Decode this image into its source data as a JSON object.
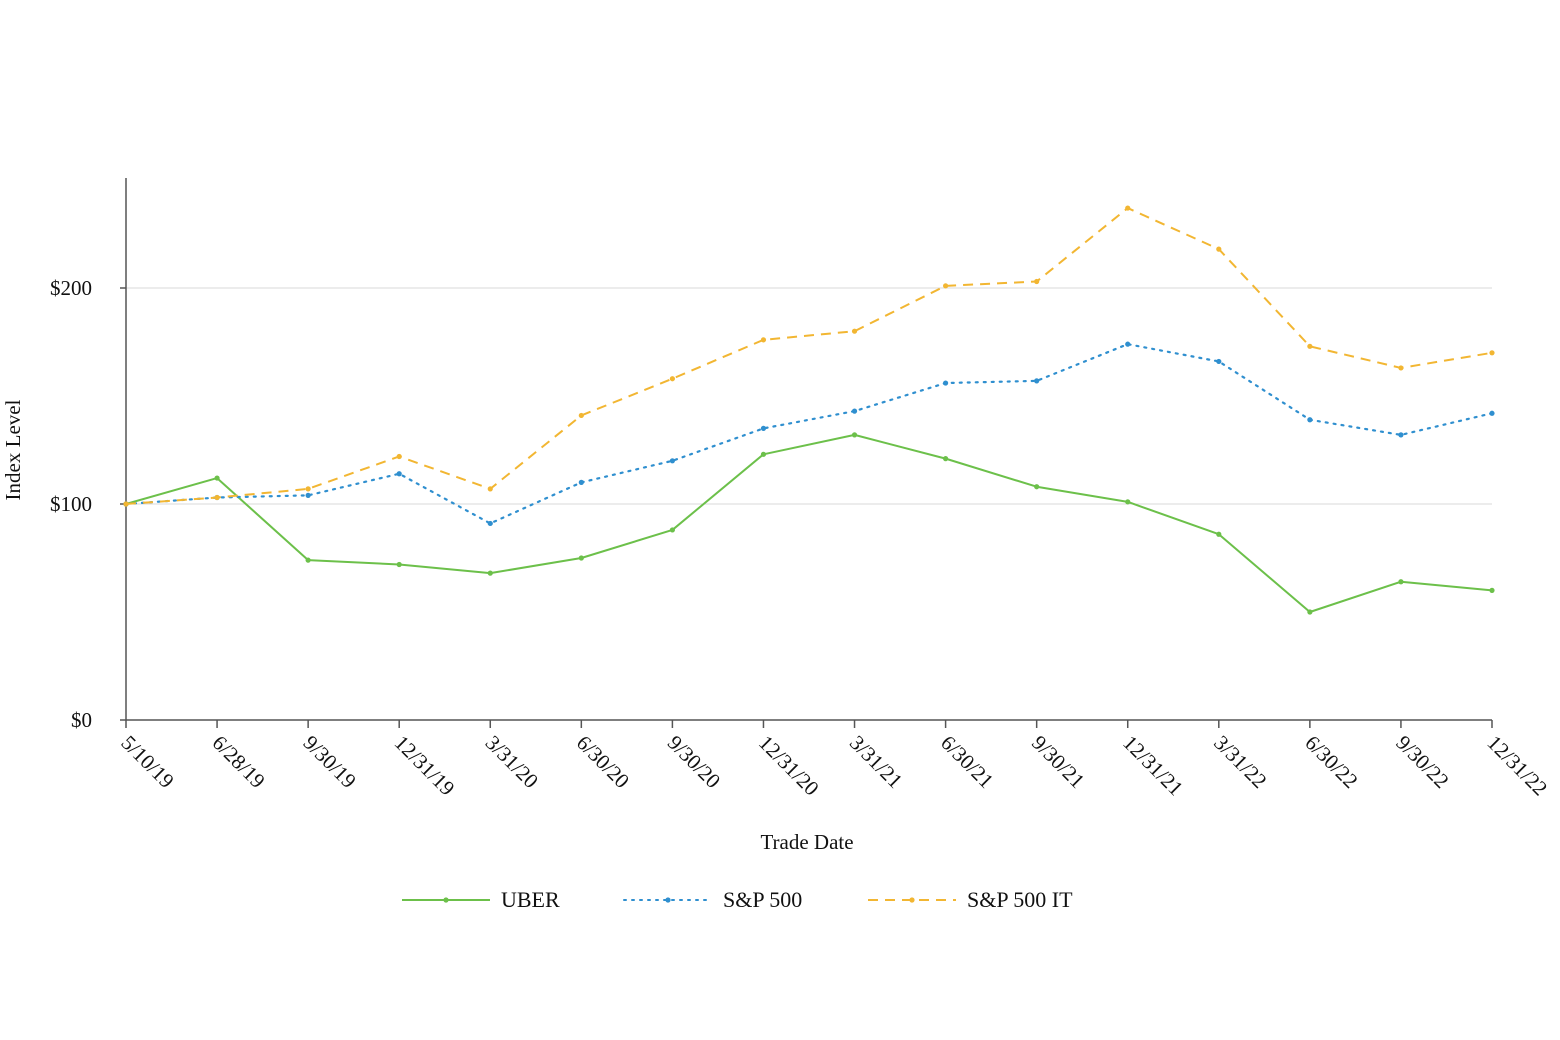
{
  "chart_data": {
    "type": "line",
    "xlabel": "Trade Date",
    "ylabel": "Index Level",
    "categories": [
      "5/10/19",
      "6/28/19",
      "9/30/19",
      "12/31/19",
      "3/31/20",
      "6/30/20",
      "9/30/20",
      "12/31/20",
      "3/31/21",
      "6/30/21",
      "9/30/21",
      "12/31/21",
      "3/31/22",
      "6/30/22",
      "9/30/22",
      "12/31/22"
    ],
    "y_ticks": [
      0,
      100,
      200
    ],
    "y_tick_labels": [
      "$0",
      "$100",
      "$200"
    ],
    "ylim": [
      0,
      250
    ],
    "grid": "horizontal",
    "legend_position": "bottom",
    "series": [
      {
        "name": "UBER",
        "color": "#6cc04a",
        "style": "solid",
        "values": [
          100,
          112,
          74,
          72,
          68,
          75,
          88,
          123,
          132,
          121,
          108,
          101,
          86,
          50,
          64,
          60
        ]
      },
      {
        "name": "S&P 500",
        "color": "#2f8fcf",
        "style": "dotted",
        "values": [
          100,
          103,
          104,
          114,
          91,
          110,
          120,
          135,
          143,
          156,
          157,
          174,
          166,
          139,
          132,
          142
        ]
      },
      {
        "name": "S&P 500 IT",
        "color": "#f2b632",
        "style": "dashed",
        "values": [
          100,
          103,
          107,
          122,
          107,
          141,
          158,
          176,
          180,
          201,
          203,
          237,
          218,
          173,
          163,
          170
        ]
      }
    ]
  }
}
